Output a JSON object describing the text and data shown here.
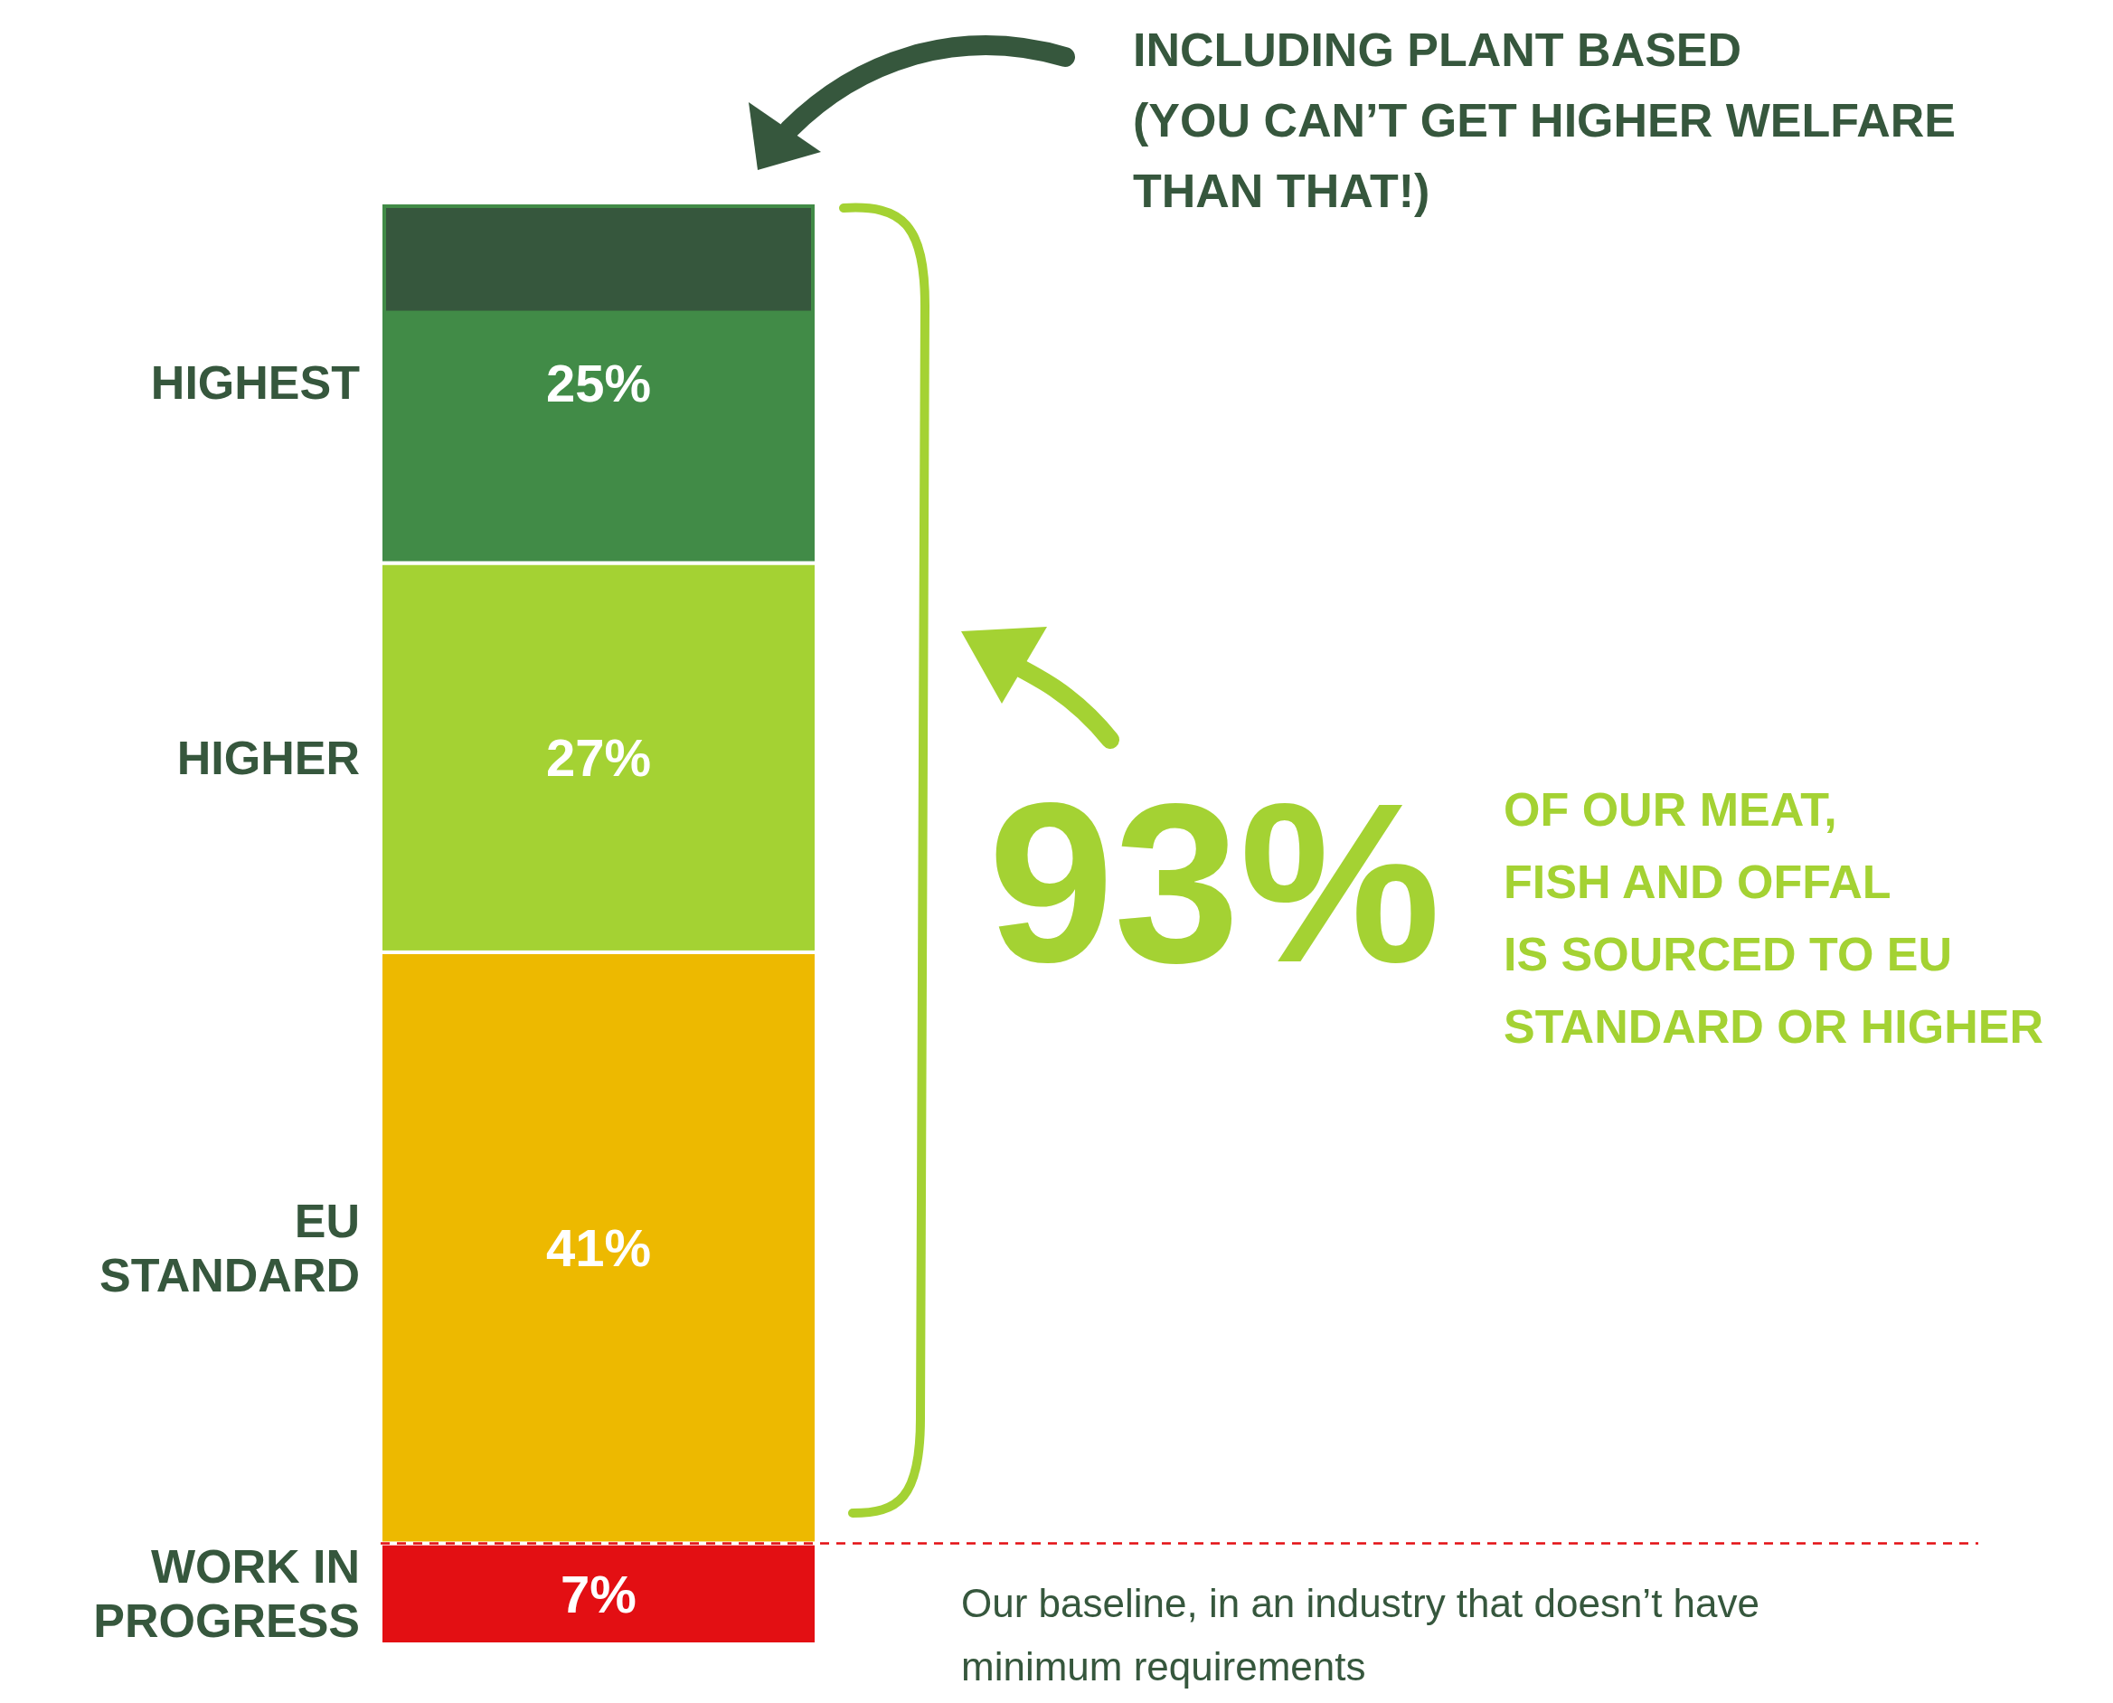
{
  "chart_data": {
    "type": "bar",
    "stacked": true,
    "categories": [
      null
    ],
    "series": [
      {
        "name": "WORK IN\nPROGRESS",
        "color": "#e30f13",
        "values": [
          7
        ],
        "value_labels": [
          "7%"
        ]
      },
      {
        "name": "EU\nSTANDARD",
        "color": "#edb900",
        "values": [
          41
        ],
        "value_labels": [
          "41%"
        ]
      },
      {
        "name": "HIGHER",
        "color": "#a4d233",
        "values": [
          27
        ],
        "value_labels": [
          "27%"
        ]
      },
      {
        "name": "HIGHEST",
        "color": "#418b47",
        "values": [
          25
        ],
        "value_labels": [
          "25%"
        ]
      }
    ],
    "bands": [
      {
        "axis": "y",
        "from": 92.5,
        "to": 100,
        "color": "#36573d"
      }
    ],
    "ref_lines": [
      {
        "axis": "y",
        "value": 7,
        "color": "#e30f13",
        "line_style": "dashed",
        "label": "Our baseline, in an industry that doesn’t have\nminimum requirements"
      }
    ],
    "annotations": [
      "INCLUDING PLANT BASED\n(YOU CAN’T GET HIGHER WELFARE\nTHAN THAT!)",
      "93%",
      "OF OUR MEAT,\nFISH AND OFFAL\nIS SOURCED TO EU\nSTANDARD OR HIGHER"
    ]
  }
}
